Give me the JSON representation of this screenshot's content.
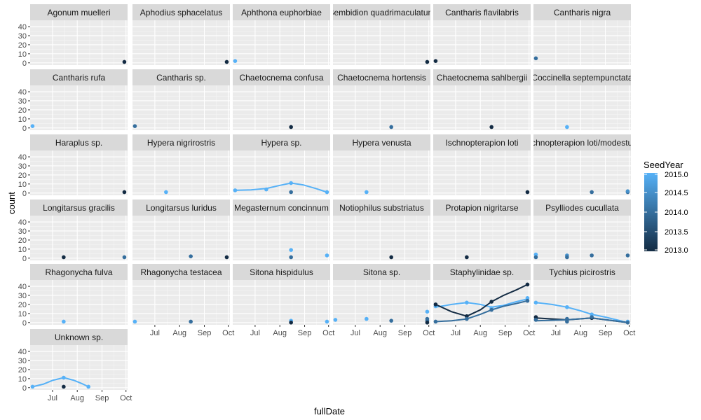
{
  "chart_data": {
    "type": "scatter",
    "subtype": "faceted scatter with smoothed trend lines",
    "xlabel": "fullDate",
    "ylabel": "count",
    "x_ticks": [
      "Jul",
      "Aug",
      "Sep",
      "Oct"
    ],
    "x_tick_dates": [
      "2015-07-01",
      "2015-08-01",
      "2015-09-01",
      "2015-10-01"
    ],
    "xlim": [
      "2015-06-03",
      "2015-10-03"
    ],
    "y_ticks": [
      0,
      10,
      20,
      30,
      40
    ],
    "ylim": [
      -2.5,
      47
    ],
    "grid": true,
    "legend": {
      "title": "SeedYear",
      "placement": "right",
      "labels": [
        "2015.0",
        "2014.5",
        "2014.0",
        "2013.5",
        "2013.0"
      ],
      "low_color": "#132B43",
      "high_color": "#56B1F7",
      "range": [
        2013.0,
        2015.0
      ]
    },
    "colors": {
      "panel_bg": "#EBEBEB",
      "strip_bg": "#D9D9D9",
      "grid": "#FFFFFF"
    },
    "facets": [
      {
        "name": "Agonum muelleri",
        "points": [
          {
            "x": "2015-09-29",
            "y": 1,
            "seed": 2013
          }
        ],
        "lines": []
      },
      {
        "name": "Aphodius sphacelatus",
        "points": [
          {
            "x": "2015-09-29",
            "y": 1,
            "seed": 2013
          }
        ],
        "lines": []
      },
      {
        "name": "Aphthona euphorbiae",
        "points": [
          {
            "x": "2015-06-06",
            "y": 2,
            "seed": 2015
          }
        ],
        "lines": []
      },
      {
        "name": "Bembidion quadrimaculatum",
        "points": [
          {
            "x": "2015-09-29",
            "y": 1,
            "seed": 2013
          }
        ],
        "lines": []
      },
      {
        "name": "Cantharis flavilabris",
        "points": [
          {
            "x": "2015-06-06",
            "y": 2,
            "seed": 2013
          }
        ],
        "lines": []
      },
      {
        "name": "Cantharis nigra",
        "points": [
          {
            "x": "2015-06-06",
            "y": 5,
            "seed": 2014
          }
        ],
        "lines": []
      },
      {
        "name": "Cantharis rufa",
        "points": [
          {
            "x": "2015-06-06",
            "y": 2,
            "seed": 2015
          }
        ],
        "lines": []
      },
      {
        "name": "Cantharis sp.",
        "points": [
          {
            "x": "2015-06-06",
            "y": 2,
            "seed": 2014
          }
        ],
        "lines": []
      },
      {
        "name": "Chaetocnema confusa",
        "points": [
          {
            "x": "2015-08-15",
            "y": 1,
            "seed": 2013
          }
        ],
        "lines": []
      },
      {
        "name": "Chaetocnema hortensis",
        "points": [
          {
            "x": "2015-08-15",
            "y": 1,
            "seed": 2014
          }
        ],
        "lines": []
      },
      {
        "name": "Chaetocnema sahlbergii",
        "points": [
          {
            "x": "2015-08-15",
            "y": 1,
            "seed": 2013
          }
        ],
        "lines": []
      },
      {
        "name": "Coccinella septempunctata",
        "points": [
          {
            "x": "2015-07-15",
            "y": 1,
            "seed": 2015
          }
        ],
        "lines": []
      },
      {
        "name": "Haraplus sp.",
        "points": [
          {
            "x": "2015-09-29",
            "y": 1,
            "seed": 2013
          }
        ],
        "lines": []
      },
      {
        "name": "Hypera nigrirostris",
        "points": [
          {
            "x": "2015-07-15",
            "y": 1,
            "seed": 2015
          }
        ],
        "lines": []
      },
      {
        "name": "Hypera sp.",
        "points": [
          {
            "x": "2015-06-06",
            "y": 3,
            "seed": 2015
          },
          {
            "x": "2015-07-15",
            "y": 4,
            "seed": 2015
          },
          {
            "x": "2015-08-15",
            "y": 11,
            "seed": 2015
          },
          {
            "x": "2015-08-15",
            "y": 1,
            "seed": 2014
          },
          {
            "x": "2015-09-29",
            "y": 1,
            "seed": 2015
          }
        ],
        "lines": [
          {
            "seed": 2015,
            "points": [
              {
                "x": "2015-06-06",
                "y": 3
              },
              {
                "x": "2015-06-26",
                "y": 3.5
              },
              {
                "x": "2015-07-15",
                "y": 5
              },
              {
                "x": "2015-08-01",
                "y": 8.5
              },
              {
                "x": "2015-08-15",
                "y": 11
              },
              {
                "x": "2015-08-30",
                "y": 9
              },
              {
                "x": "2015-09-15",
                "y": 5
              },
              {
                "x": "2015-09-29",
                "y": 1
              }
            ]
          }
        ]
      },
      {
        "name": "Hypera venusta",
        "points": [
          {
            "x": "2015-07-15",
            "y": 1,
            "seed": 2015
          }
        ],
        "lines": []
      },
      {
        "name": "Ischnopterapion loti",
        "points": [
          {
            "x": "2015-09-29",
            "y": 1,
            "seed": 2013
          }
        ],
        "lines": []
      },
      {
        "name": "Ischnopterapion loti/modestum",
        "points": [
          {
            "x": "2015-08-15",
            "y": 1,
            "seed": 2014
          },
          {
            "x": "2015-09-29",
            "y": 1,
            "seed": 2014
          },
          {
            "x": "2015-09-29",
            "y": 2,
            "seed": 2014.5
          }
        ],
        "lines": []
      },
      {
        "name": "Longitarsus gracilis",
        "points": [
          {
            "x": "2015-07-15",
            "y": 1,
            "seed": 2013
          },
          {
            "x": "2015-09-29",
            "y": 1,
            "seed": 2014
          }
        ],
        "lines": []
      },
      {
        "name": "Longitarsus luridus",
        "points": [
          {
            "x": "2015-08-15",
            "y": 2,
            "seed": 2014
          },
          {
            "x": "2015-09-29",
            "y": 1,
            "seed": 2013
          }
        ],
        "lines": []
      },
      {
        "name": "Megasternum concinnum",
        "points": [
          {
            "x": "2015-08-15",
            "y": 9,
            "seed": 2015
          },
          {
            "x": "2015-08-15",
            "y": 1,
            "seed": 2014
          },
          {
            "x": "2015-09-29",
            "y": 3,
            "seed": 2015
          }
        ],
        "lines": []
      },
      {
        "name": "Notiophilus substriatus",
        "points": [
          {
            "x": "2015-08-15",
            "y": 1,
            "seed": 2013
          }
        ],
        "lines": []
      },
      {
        "name": "Protapion nigritarse",
        "points": [
          {
            "x": "2015-07-15",
            "y": 1,
            "seed": 2013
          }
        ],
        "lines": []
      },
      {
        "name": "Psylliodes cucullata",
        "points": [
          {
            "x": "2015-06-06",
            "y": 4,
            "seed": 2015
          },
          {
            "x": "2015-06-06",
            "y": 1,
            "seed": 2014
          },
          {
            "x": "2015-07-15",
            "y": 3,
            "seed": 2014.5
          },
          {
            "x": "2015-07-15",
            "y": 1,
            "seed": 2014
          },
          {
            "x": "2015-08-15",
            "y": 3,
            "seed": 2014
          },
          {
            "x": "2015-09-29",
            "y": 3,
            "seed": 2014
          }
        ],
        "lines": []
      },
      {
        "name": "Rhagonycha fulva",
        "points": [
          {
            "x": "2015-07-15",
            "y": 1,
            "seed": 2015
          }
        ],
        "lines": []
      },
      {
        "name": "Rhagonycha testacea",
        "points": [
          {
            "x": "2015-06-06",
            "y": 1,
            "seed": 2015
          },
          {
            "x": "2015-08-15",
            "y": 1,
            "seed": 2014
          }
        ],
        "lines": []
      },
      {
        "name": "Sitona hispidulus",
        "points": [
          {
            "x": "2015-08-15",
            "y": 2,
            "seed": 2015
          },
          {
            "x": "2015-08-15",
            "y": 0,
            "seed": 2013
          },
          {
            "x": "2015-09-29",
            "y": 1,
            "seed": 2015
          }
        ],
        "lines": []
      },
      {
        "name": "Sitona sp.",
        "points": [
          {
            "x": "2015-06-06",
            "y": 3,
            "seed": 2015
          },
          {
            "x": "2015-07-15",
            "y": 4,
            "seed": 2015
          },
          {
            "x": "2015-08-15",
            "y": 2,
            "seed": 2014
          },
          {
            "x": "2015-09-29",
            "y": 12,
            "seed": 2015
          },
          {
            "x": "2015-09-29",
            "y": 4,
            "seed": 2014
          },
          {
            "x": "2015-09-29",
            "y": 2,
            "seed": 2014
          },
          {
            "x": "2015-09-29",
            "y": 0,
            "seed": 2013
          }
        ],
        "lines": []
      },
      {
        "name": "Staphylinidae sp.",
        "points": [
          {
            "x": "2015-06-06",
            "y": 18,
            "seed": 2015
          },
          {
            "x": "2015-06-06",
            "y": 20,
            "seed": 2013
          },
          {
            "x": "2015-06-06",
            "y": 1,
            "seed": 2014
          },
          {
            "x": "2015-07-15",
            "y": 22,
            "seed": 2015
          },
          {
            "x": "2015-07-15",
            "y": 7,
            "seed": 2013
          },
          {
            "x": "2015-07-15",
            "y": 4,
            "seed": 2014
          },
          {
            "x": "2015-08-15",
            "y": 16,
            "seed": 2015
          },
          {
            "x": "2015-08-15",
            "y": 23,
            "seed": 2013
          },
          {
            "x": "2015-08-15",
            "y": 14,
            "seed": 2014
          },
          {
            "x": "2015-09-29",
            "y": 27,
            "seed": 2015
          },
          {
            "x": "2015-09-29",
            "y": 42,
            "seed": 2013
          },
          {
            "x": "2015-09-29",
            "y": 24,
            "seed": 2014
          }
        ],
        "lines": [
          {
            "seed": 2015,
            "points": [
              {
                "x": "2015-06-06",
                "y": 17
              },
              {
                "x": "2015-06-26",
                "y": 20
              },
              {
                "x": "2015-07-15",
                "y": 22
              },
              {
                "x": "2015-08-01",
                "y": 20
              },
              {
                "x": "2015-08-15",
                "y": 17
              },
              {
                "x": "2015-08-30",
                "y": 19
              },
              {
                "x": "2015-09-15",
                "y": 23
              },
              {
                "x": "2015-09-29",
                "y": 26
              }
            ]
          },
          {
            "seed": 2013,
            "points": [
              {
                "x": "2015-06-06",
                "y": 20
              },
              {
                "x": "2015-06-26",
                "y": 12
              },
              {
                "x": "2015-07-15",
                "y": 7
              },
              {
                "x": "2015-08-01",
                "y": 14
              },
              {
                "x": "2015-08-15",
                "y": 23
              },
              {
                "x": "2015-08-30",
                "y": 30
              },
              {
                "x": "2015-09-15",
                "y": 36
              },
              {
                "x": "2015-09-29",
                "y": 42
              }
            ]
          },
          {
            "seed": 2014,
            "points": [
              {
                "x": "2015-06-06",
                "y": 1
              },
              {
                "x": "2015-06-26",
                "y": 2
              },
              {
                "x": "2015-07-15",
                "y": 4
              },
              {
                "x": "2015-08-01",
                "y": 9
              },
              {
                "x": "2015-08-15",
                "y": 14
              },
              {
                "x": "2015-08-30",
                "y": 18
              },
              {
                "x": "2015-09-15",
                "y": 21
              },
              {
                "x": "2015-09-29",
                "y": 24
              }
            ]
          }
        ]
      },
      {
        "name": "Tychius picirostris",
        "points": [
          {
            "x": "2015-06-06",
            "y": 22,
            "seed": 2015
          },
          {
            "x": "2015-06-06",
            "y": 6,
            "seed": 2013
          },
          {
            "x": "2015-06-06",
            "y": 3,
            "seed": 2014
          },
          {
            "x": "2015-07-15",
            "y": 17,
            "seed": 2015
          },
          {
            "x": "2015-07-15",
            "y": 4,
            "seed": 2014
          },
          {
            "x": "2015-07-15",
            "y": 1,
            "seed": 2014
          },
          {
            "x": "2015-08-15",
            "y": 9,
            "seed": 2015
          },
          {
            "x": "2015-08-15",
            "y": 5,
            "seed": 2013
          },
          {
            "x": "2015-08-15",
            "y": 6,
            "seed": 2014
          },
          {
            "x": "2015-09-29",
            "y": 1,
            "seed": 2015
          },
          {
            "x": "2015-09-29",
            "y": 0,
            "seed": 2014
          }
        ],
        "lines": [
          {
            "seed": 2015,
            "points": [
              {
                "x": "2015-06-06",
                "y": 22
              },
              {
                "x": "2015-06-26",
                "y": 20
              },
              {
                "x": "2015-07-15",
                "y": 17
              },
              {
                "x": "2015-08-01",
                "y": 13
              },
              {
                "x": "2015-08-15",
                "y": 9
              },
              {
                "x": "2015-09-01",
                "y": 6
              },
              {
                "x": "2015-09-15",
                "y": 3
              },
              {
                "x": "2015-09-29",
                "y": 0
              }
            ]
          },
          {
            "seed": 2013,
            "points": [
              {
                "x": "2015-06-06",
                "y": 5
              },
              {
                "x": "2015-07-15",
                "y": 3
              },
              {
                "x": "2015-08-15",
                "y": 5
              },
              {
                "x": "2015-09-29",
                "y": 0
              }
            ]
          },
          {
            "seed": 2014,
            "points": [
              {
                "x": "2015-06-06",
                "y": 2
              },
              {
                "x": "2015-07-15",
                "y": 3
              },
              {
                "x": "2015-08-15",
                "y": 5
              },
              {
                "x": "2015-09-29",
                "y": 0
              }
            ]
          }
        ]
      },
      {
        "name": "Unknown sp.",
        "points": [
          {
            "x": "2015-06-06",
            "y": 1,
            "seed": 2015
          },
          {
            "x": "2015-07-15",
            "y": 11,
            "seed": 2015
          },
          {
            "x": "2015-07-15",
            "y": 1,
            "seed": 2013
          },
          {
            "x": "2015-08-15",
            "y": 1,
            "seed": 2015
          }
        ],
        "lines": [
          {
            "seed": 2015,
            "points": [
              {
                "x": "2015-06-06",
                "y": 1
              },
              {
                "x": "2015-06-20",
                "y": 4
              },
              {
                "x": "2015-07-01",
                "y": 8
              },
              {
                "x": "2015-07-15",
                "y": 11
              },
              {
                "x": "2015-07-28",
                "y": 8
              },
              {
                "x": "2015-08-08",
                "y": 4
              },
              {
                "x": "2015-08-15",
                "y": 1
              }
            ]
          }
        ]
      }
    ]
  }
}
